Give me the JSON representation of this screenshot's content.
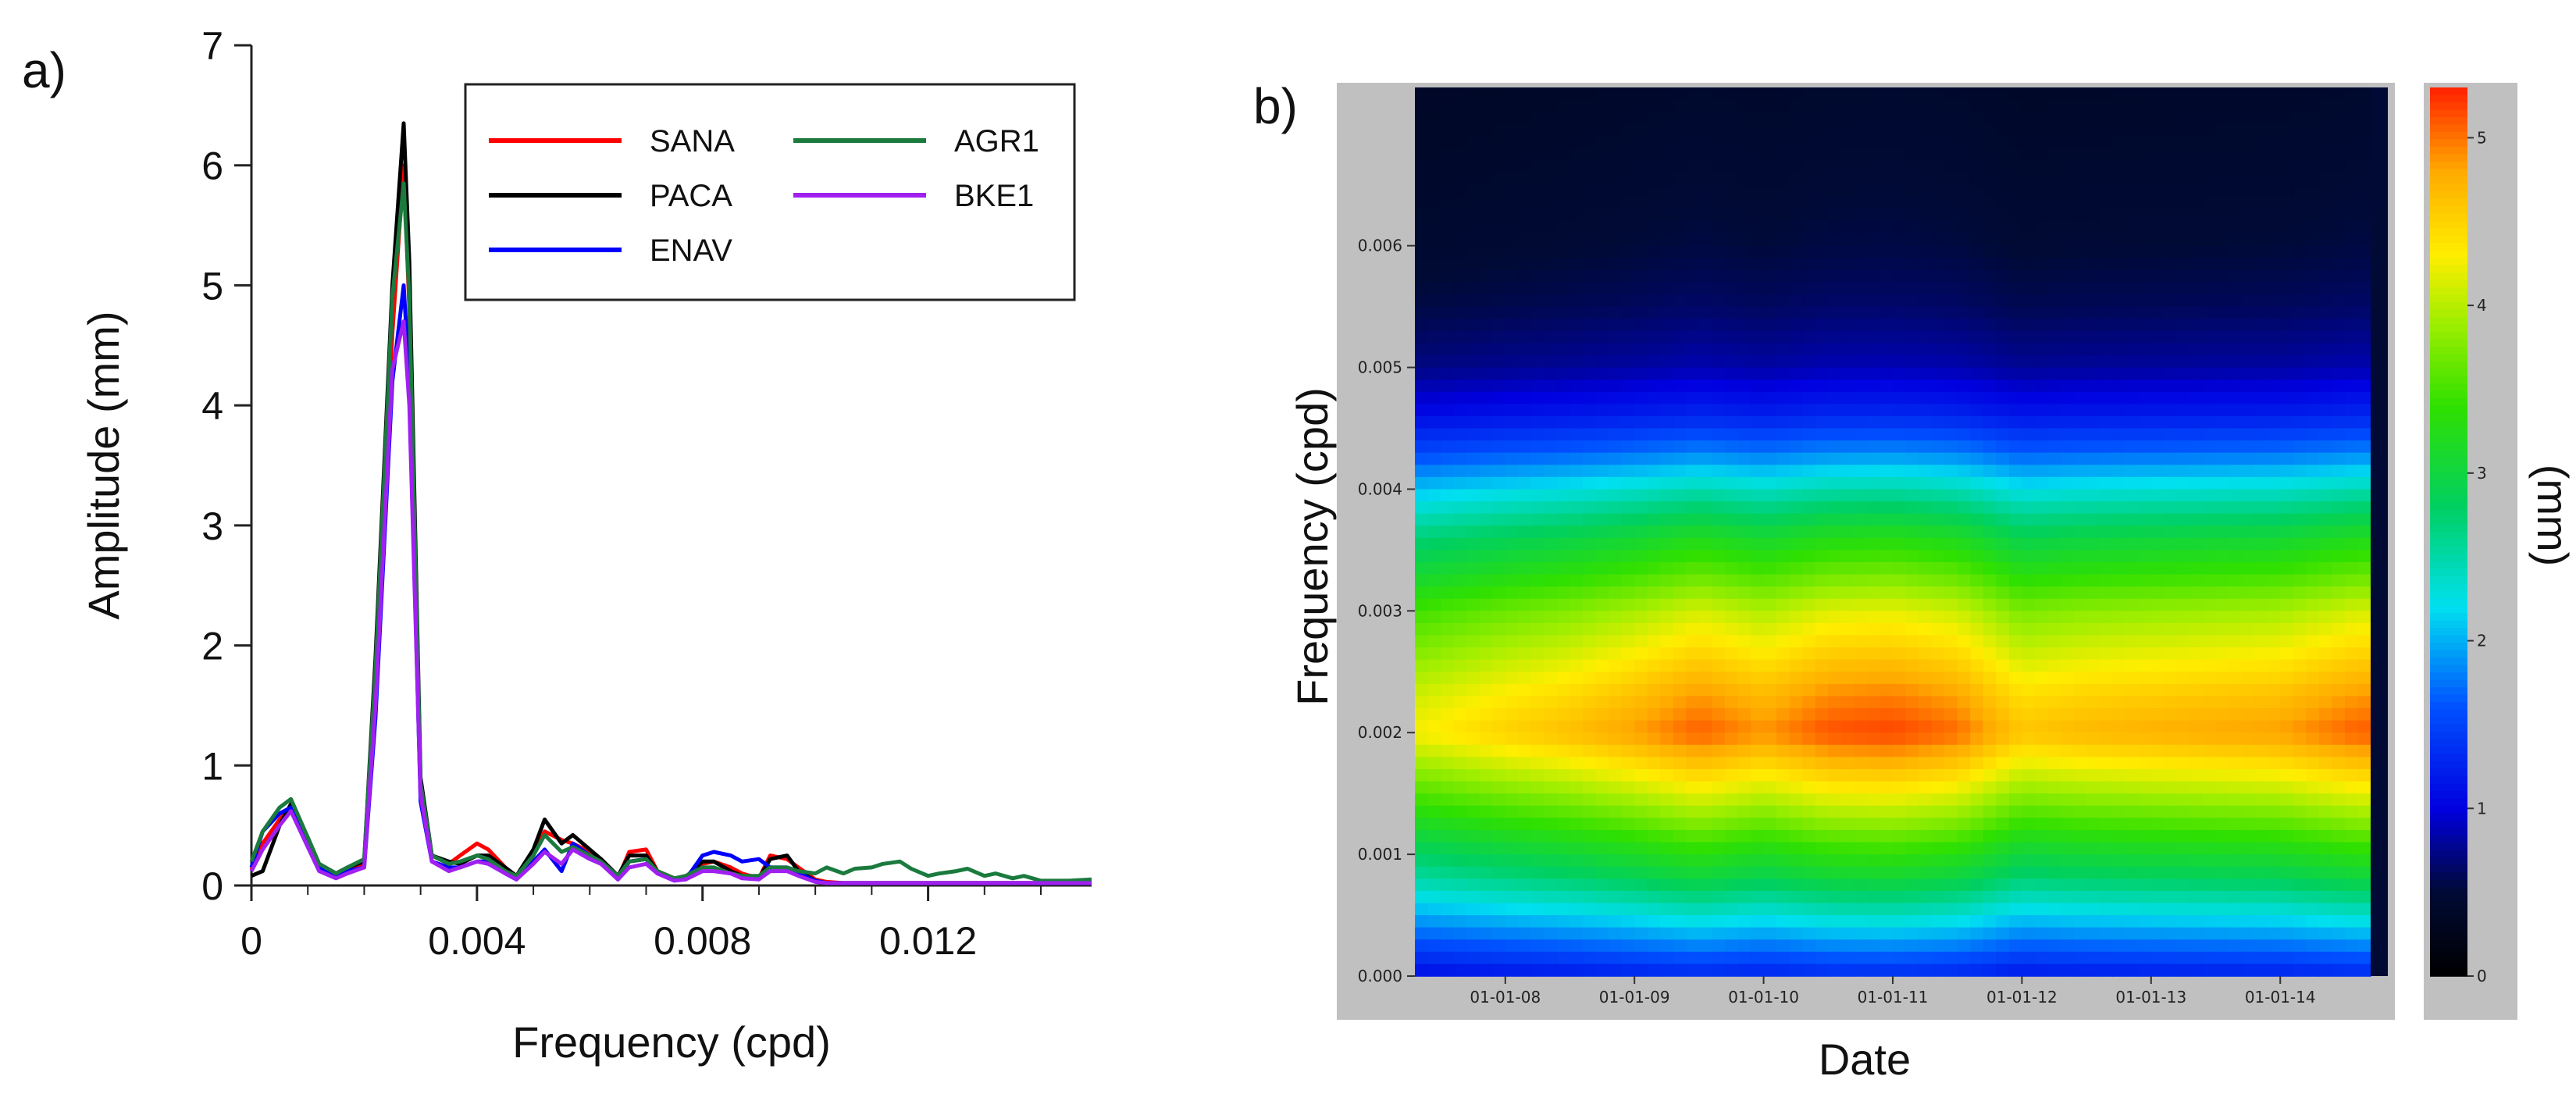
{
  "chart_data": [
    {
      "panel_label": "a)",
      "type": "line",
      "xlabel": "Frequency (cpd)",
      "ylabel": "Amplitude (mm)",
      "xlim": [
        0,
        0.0149
      ],
      "ylim": [
        0,
        7
      ],
      "x_ticks": [
        0,
        0.004,
        0.008,
        0.012
      ],
      "x_tick_labels": [
        "0",
        "0.004",
        "0.008",
        "0.012"
      ],
      "y_ticks": [
        0,
        1,
        2,
        3,
        4,
        5,
        6,
        7
      ],
      "y_tick_labels": [
        "0",
        "1",
        "2",
        "3",
        "4",
        "5",
        "6",
        "7"
      ],
      "legend_position": "top-right",
      "x": [
        0,
        0.0002,
        0.0005,
        0.0007,
        0.001,
        0.0012,
        0.0015,
        0.0017,
        0.002,
        0.0022,
        0.0025,
        0.0027,
        0.0028,
        0.003,
        0.0032,
        0.0035,
        0.0037,
        0.004,
        0.0042,
        0.0045,
        0.0047,
        0.005,
        0.0052,
        0.0055,
        0.0057,
        0.006,
        0.0062,
        0.0065,
        0.0067,
        0.007,
        0.0072,
        0.0075,
        0.0077,
        0.008,
        0.0082,
        0.0085,
        0.0087,
        0.009,
        0.0092,
        0.0095,
        0.0097,
        0.01,
        0.0102,
        0.0105,
        0.0107,
        0.011,
        0.0112,
        0.0115,
        0.0117,
        0.012,
        0.0122,
        0.0125,
        0.0127,
        0.013,
        0.0132,
        0.0135,
        0.0137,
        0.014,
        0.0142,
        0.0145,
        0.0149
      ],
      "series": [
        {
          "name": "SANA",
          "color": "#ff0000",
          "values": [
            0.13,
            0.35,
            0.55,
            0.66,
            0.35,
            0.15,
            0.08,
            0.12,
            0.18,
            1.6,
            4.6,
            6.0,
            4.8,
            0.8,
            0.25,
            0.18,
            0.25,
            0.35,
            0.3,
            0.15,
            0.06,
            0.25,
            0.45,
            0.38,
            0.35,
            0.28,
            0.2,
            0.06,
            0.28,
            0.3,
            0.12,
            0.06,
            0.06,
            0.18,
            0.2,
            0.15,
            0.1,
            0.06,
            0.25,
            0.22,
            0.15,
            0.05,
            0.03,
            0.02,
            0.02,
            0.02,
            0.02,
            0.02,
            0.02,
            0.02,
            0.02,
            0.02,
            0.02,
            0.02,
            0.02,
            0.02,
            0.02,
            0.02,
            0.02,
            0.02,
            0.02
          ]
        },
        {
          "name": "PACA",
          "color": "#000000",
          "values": [
            0.08,
            0.12,
            0.5,
            0.68,
            0.4,
            0.18,
            0.1,
            0.15,
            0.2,
            1.9,
            5.0,
            6.35,
            5.2,
            0.9,
            0.25,
            0.2,
            0.18,
            0.25,
            0.25,
            0.15,
            0.08,
            0.3,
            0.55,
            0.35,
            0.42,
            0.3,
            0.22,
            0.08,
            0.25,
            0.25,
            0.12,
            0.05,
            0.07,
            0.2,
            0.2,
            0.12,
            0.08,
            0.06,
            0.22,
            0.25,
            0.12,
            0.04,
            0.02,
            0.02,
            0.02,
            0.02,
            0.02,
            0.02,
            0.02,
            0.02,
            0.02,
            0.02,
            0.02,
            0.02,
            0.02,
            0.02,
            0.02,
            0.02,
            0.02,
            0.02,
            0.02
          ]
        },
        {
          "name": "ENAV",
          "color": "#0000ff",
          "values": [
            0.15,
            0.45,
            0.6,
            0.65,
            0.35,
            0.15,
            0.08,
            0.12,
            0.15,
            1.4,
            4.2,
            5.0,
            4.2,
            0.7,
            0.2,
            0.15,
            0.15,
            0.2,
            0.2,
            0.1,
            0.05,
            0.2,
            0.3,
            0.12,
            0.35,
            0.25,
            0.2,
            0.05,
            0.2,
            0.22,
            0.1,
            0.05,
            0.05,
            0.25,
            0.28,
            0.25,
            0.2,
            0.22,
            0.15,
            0.15,
            0.1,
            0.04,
            0.02,
            0.02,
            0.02,
            0.02,
            0.02,
            0.02,
            0.02,
            0.02,
            0.02,
            0.02,
            0.02,
            0.02,
            0.02,
            0.02,
            0.02,
            0.02,
            0.02,
            0.02,
            0.02
          ]
        },
        {
          "name": "AGR1",
          "color": "#1b7a3e",
          "values": [
            0.2,
            0.45,
            0.65,
            0.72,
            0.4,
            0.18,
            0.1,
            0.15,
            0.22,
            1.8,
            4.9,
            5.85,
            4.9,
            0.85,
            0.25,
            0.18,
            0.2,
            0.25,
            0.22,
            0.12,
            0.08,
            0.25,
            0.42,
            0.28,
            0.32,
            0.25,
            0.2,
            0.08,
            0.2,
            0.22,
            0.12,
            0.06,
            0.08,
            0.15,
            0.15,
            0.1,
            0.08,
            0.08,
            0.15,
            0.15,
            0.12,
            0.1,
            0.15,
            0.1,
            0.14,
            0.15,
            0.18,
            0.2,
            0.14,
            0.08,
            0.1,
            0.12,
            0.14,
            0.08,
            0.1,
            0.06,
            0.08,
            0.04,
            0.04,
            0.04,
            0.05
          ]
        },
        {
          "name": "BKE1",
          "color": "#a020f0",
          "values": [
            0.12,
            0.3,
            0.5,
            0.62,
            0.32,
            0.12,
            0.06,
            0.1,
            0.15,
            1.5,
            4.3,
            4.7,
            4.0,
            0.75,
            0.2,
            0.12,
            0.15,
            0.2,
            0.18,
            0.1,
            0.05,
            0.18,
            0.28,
            0.18,
            0.3,
            0.22,
            0.18,
            0.05,
            0.15,
            0.18,
            0.1,
            0.04,
            0.05,
            0.12,
            0.12,
            0.1,
            0.06,
            0.05,
            0.12,
            0.12,
            0.08,
            0.03,
            0.02,
            0.02,
            0.02,
            0.02,
            0.02,
            0.02,
            0.02,
            0.02,
            0.02,
            0.02,
            0.02,
            0.02,
            0.02,
            0.02,
            0.02,
            0.02,
            0.02,
            0.02,
            0.02
          ]
        }
      ]
    },
    {
      "panel_label": "b)",
      "type": "heatmap",
      "xlabel": "Date",
      "ylabel": "Frequency (cpd)",
      "colorbar_label": "(mm)",
      "ylim": [
        0,
        0.0073
      ],
      "y_ticks": [
        0,
        0.001,
        0.002,
        0.003,
        0.004,
        0.005,
        0.006
      ],
      "y_tick_labels": [
        "0.000",
        "0.001",
        "0.002",
        "0.003",
        "0.004",
        "0.005",
        "0.006"
      ],
      "x_range_years": [
        2007.3,
        2014.7
      ],
      "x_ticks_years": [
        2008,
        2009,
        2010,
        2011,
        2012,
        2013,
        2014
      ],
      "x_tick_labels": [
        "01-01-08",
        "01-01-09",
        "01-01-10",
        "01-01-11",
        "01-01-12",
        "01-01-13",
        "01-01-14"
      ],
      "colorbar_range": [
        0,
        5.3
      ],
      "colorbar_ticks": [
        0,
        1,
        2,
        3,
        4,
        5
      ],
      "colorbar_tick_labels": [
        "0",
        "1",
        "2",
        "3",
        "4",
        "5"
      ],
      "colormap": [
        {
          "value": 0.0,
          "color": "#000000"
        },
        {
          "value": 0.5,
          "color": "#000a35"
        },
        {
          "value": 1.0,
          "color": "#0000e0"
        },
        {
          "value": 1.6,
          "color": "#0050ff"
        },
        {
          "value": 2.2,
          "color": "#00e0f0"
        },
        {
          "value": 2.8,
          "color": "#00d060"
        },
        {
          "value": 3.4,
          "color": "#30e000"
        },
        {
          "value": 3.9,
          "color": "#a0ee00"
        },
        {
          "value": 4.3,
          "color": "#ffee00"
        },
        {
          "value": 4.8,
          "color": "#ffaa00"
        },
        {
          "value": 5.3,
          "color": "#ff2000"
        }
      ],
      "frequency_profile_freq": [
        0,
        0.0002,
        0.0005,
        0.0008,
        0.001,
        0.0013,
        0.0016,
        0.002,
        0.0023,
        0.0026,
        0.003,
        0.0033,
        0.0036,
        0.004,
        0.0043,
        0.0046,
        0.005,
        0.0055,
        0.006,
        0.0066,
        0.0073
      ],
      "frequency_profile_amplitude": [
        1.2,
        1.6,
        2.2,
        2.8,
        3.1,
        3.6,
        4.1,
        4.75,
        4.55,
        4.25,
        3.85,
        3.4,
        3.0,
        2.3,
        1.7,
        1.2,
        0.8,
        0.6,
        0.5,
        0.45,
        0.4
      ],
      "time_modulation_years": [
        2007.3,
        2008.0,
        2008.5,
        2009.0,
        2009.5,
        2010.0,
        2010.5,
        2011.0,
        2011.5,
        2012.0,
        2012.5,
        2013.0,
        2013.5,
        2014.0,
        2014.6
      ],
      "time_modulation_factor": [
        0.9,
        0.95,
        0.98,
        1.02,
        1.07,
        1.03,
        1.08,
        1.09,
        1.06,
        0.97,
        0.99,
        1.0,
        1.01,
        1.02,
        1.07
      ]
    }
  ]
}
